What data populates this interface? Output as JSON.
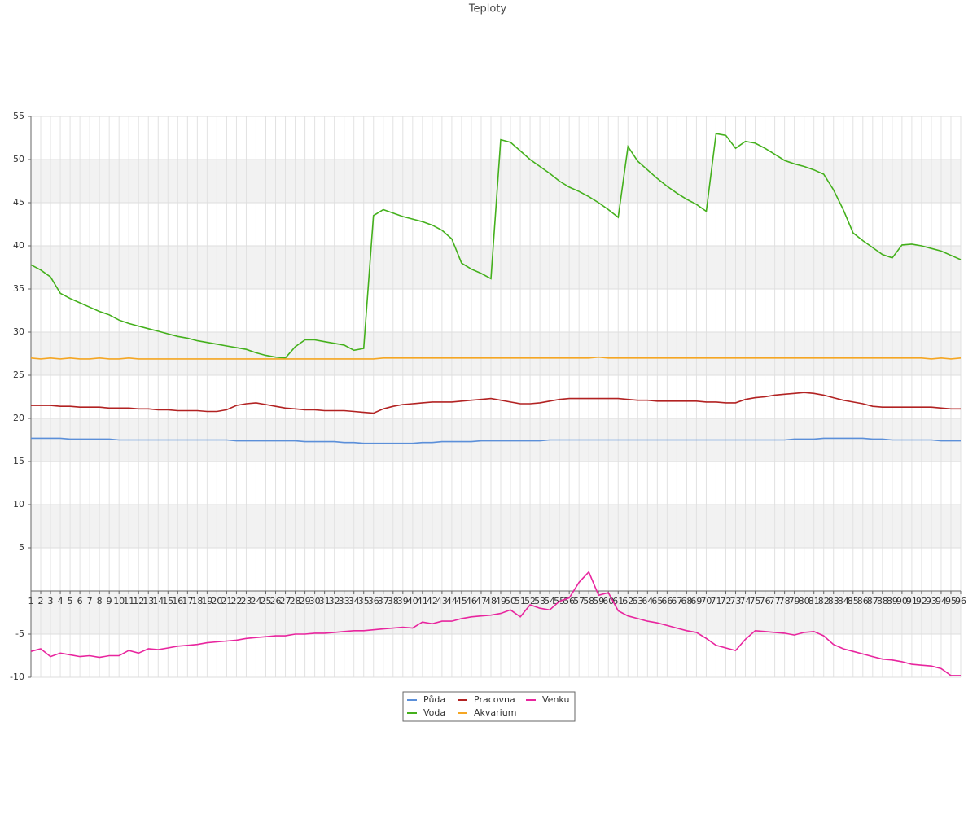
{
  "chart_data": {
    "type": "line",
    "title": "Teploty",
    "categories": [
      1,
      2,
      3,
      4,
      5,
      6,
      7,
      8,
      9,
      10,
      11,
      12,
      13,
      14,
      15,
      16,
      17,
      18,
      19,
      20,
      21,
      22,
      23,
      24,
      25,
      26,
      27,
      28,
      29,
      30,
      31,
      32,
      33,
      34,
      35,
      36,
      37,
      38,
      39,
      40,
      41,
      42,
      43,
      44,
      45,
      46,
      47,
      48,
      49,
      50,
      51,
      52,
      53,
      54,
      55,
      56,
      57,
      58,
      59,
      60,
      61,
      62,
      63,
      64,
      65,
      66,
      67,
      68,
      69,
      70,
      71,
      72,
      73,
      74,
      75,
      76,
      77,
      78,
      79,
      80,
      81,
      82,
      83,
      84,
      85,
      86,
      87,
      88,
      89,
      90,
      91,
      92,
      93,
      94,
      95,
      96
    ],
    "series": [
      {
        "name": "Půda",
        "color": "#5b8fd9",
        "values": [
          17.7,
          17.7,
          17.7,
          17.7,
          17.6,
          17.6,
          17.6,
          17.6,
          17.6,
          17.5,
          17.5,
          17.5,
          17.5,
          17.5,
          17.5,
          17.5,
          17.5,
          17.5,
          17.5,
          17.5,
          17.5,
          17.4,
          17.4,
          17.4,
          17.4,
          17.4,
          17.4,
          17.4,
          17.3,
          17.3,
          17.3,
          17.3,
          17.2,
          17.2,
          17.1,
          17.1,
          17.1,
          17.1,
          17.1,
          17.1,
          17.2,
          17.2,
          17.3,
          17.3,
          17.3,
          17.3,
          17.4,
          17.4,
          17.4,
          17.4,
          17.4,
          17.4,
          17.4,
          17.5,
          17.5,
          17.5,
          17.5,
          17.5,
          17.5,
          17.5,
          17.5,
          17.5,
          17.5,
          17.5,
          17.5,
          17.5,
          17.5,
          17.5,
          17.5,
          17.5,
          17.5,
          17.5,
          17.5,
          17.5,
          17.5,
          17.5,
          17.5,
          17.5,
          17.6,
          17.6,
          17.6,
          17.7,
          17.7,
          17.7,
          17.7,
          17.7,
          17.6,
          17.6,
          17.5,
          17.5,
          17.5,
          17.5,
          17.5,
          17.4,
          17.4,
          17.4
        ]
      },
      {
        "name": "Voda",
        "color": "#44b01c",
        "values": [
          37.8,
          37.2,
          36.4,
          34.5,
          33.9,
          33.4,
          32.9,
          32.4,
          32.0,
          31.4,
          31.0,
          30.7,
          30.4,
          30.1,
          29.8,
          29.5,
          29.3,
          29.0,
          28.8,
          28.6,
          28.4,
          28.2,
          28.0,
          27.6,
          27.3,
          27.1,
          27.0,
          28.3,
          29.1,
          29.1,
          28.9,
          28.7,
          28.5,
          27.9,
          28.1,
          43.5,
          44.2,
          43.8,
          43.4,
          43.1,
          42.8,
          42.4,
          41.8,
          40.8,
          38.0,
          37.3,
          36.8,
          36.2,
          52.3,
          52.0,
          51.0,
          50.0,
          49.2,
          48.4,
          47.5,
          46.8,
          46.3,
          45.7,
          45.0,
          44.2,
          43.3,
          51.5,
          49.8,
          48.8,
          47.8,
          46.9,
          46.1,
          45.4,
          44.8,
          44.0,
          53.0,
          52.8,
          51.3,
          52.1,
          51.9,
          51.3,
          50.6,
          49.9,
          49.5,
          49.2,
          48.8,
          48.3,
          46.5,
          44.2,
          41.5,
          40.6,
          39.8,
          39.0,
          38.6,
          40.1,
          40.2,
          40.0,
          39.7,
          39.4,
          38.9,
          38.4
        ]
      },
      {
        "name": "Pracovna",
        "color": "#b22222",
        "values": [
          21.5,
          21.5,
          21.5,
          21.4,
          21.4,
          21.3,
          21.3,
          21.3,
          21.2,
          21.2,
          21.2,
          21.1,
          21.1,
          21.0,
          21.0,
          20.9,
          20.9,
          20.9,
          20.8,
          20.8,
          21.0,
          21.5,
          21.7,
          21.8,
          21.6,
          21.4,
          21.2,
          21.1,
          21.0,
          21.0,
          20.9,
          20.9,
          20.9,
          20.8,
          20.7,
          20.6,
          21.1,
          21.4,
          21.6,
          21.7,
          21.8,
          21.9,
          21.9,
          21.9,
          22.0,
          22.1,
          22.2,
          22.3,
          22.1,
          21.9,
          21.7,
          21.7,
          21.8,
          22.0,
          22.2,
          22.3,
          22.3,
          22.3,
          22.3,
          22.3,
          22.3,
          22.2,
          22.1,
          22.1,
          22.0,
          22.0,
          22.0,
          22.0,
          22.0,
          21.9,
          21.9,
          21.8,
          21.8,
          22.2,
          22.4,
          22.5,
          22.7,
          22.8,
          22.9,
          23.0,
          22.9,
          22.7,
          22.4,
          22.1,
          21.9,
          21.7,
          21.4,
          21.3,
          21.3,
          21.3,
          21.3,
          21.3,
          21.3,
          21.2,
          21.1,
          21.1
        ]
      },
      {
        "name": "Akvarium",
        "color": "#f5a623",
        "values": [
          27.0,
          26.9,
          27.0,
          26.9,
          27.0,
          26.9,
          26.9,
          27.0,
          26.9,
          26.9,
          27.0,
          26.9,
          26.9,
          26.9,
          26.9,
          26.9,
          26.9,
          26.9,
          26.9,
          26.9,
          26.9,
          26.9,
          26.9,
          26.9,
          26.9,
          26.9,
          26.9,
          26.9,
          26.9,
          26.9,
          26.9,
          26.9,
          26.9,
          26.9,
          26.9,
          26.9,
          27.0,
          27.0,
          27.0,
          27.0,
          27.0,
          27.0,
          27.0,
          27.0,
          27.0,
          27.0,
          27.0,
          27.0,
          27.0,
          27.0,
          27.0,
          27.0,
          27.0,
          27.0,
          27.0,
          27.0,
          27.0,
          27.0,
          27.1,
          27.0,
          27.0,
          27.0,
          27.0,
          27.0,
          27.0,
          27.0,
          27.0,
          27.0,
          27.0,
          27.0,
          27.0,
          27.0,
          27.0,
          27.0,
          27.0,
          27.0,
          27.0,
          27.0,
          27.0,
          27.0,
          27.0,
          27.0,
          27.0,
          27.0,
          27.0,
          27.0,
          27.0,
          27.0,
          27.0,
          27.0,
          27.0,
          27.0,
          26.9,
          27.0,
          26.9,
          27.0
        ]
      },
      {
        "name": "Venku",
        "color": "#e8259e",
        "values": [
          -7.0,
          -6.7,
          -7.6,
          -7.2,
          -7.4,
          -7.6,
          -7.5,
          -7.7,
          -7.5,
          -7.5,
          -6.9,
          -7.2,
          -6.7,
          -6.8,
          -6.6,
          -6.4,
          -6.3,
          -6.2,
          -6.0,
          -5.9,
          -5.8,
          -5.7,
          -5.5,
          -5.4,
          -5.3,
          -5.2,
          -5.2,
          -5.0,
          -5.0,
          -4.9,
          -4.9,
          -4.8,
          -4.7,
          -4.6,
          -4.6,
          -4.5,
          -4.4,
          -4.3,
          -4.2,
          -4.3,
          -3.6,
          -3.8,
          -3.5,
          -3.5,
          -3.2,
          -3.0,
          -2.9,
          -2.8,
          -2.6,
          -2.2,
          -3.0,
          -1.6,
          -2.0,
          -2.2,
          -1.2,
          -0.8,
          1.0,
          2.2,
          -0.5,
          -0.2,
          -2.3,
          -2.9,
          -3.2,
          -3.5,
          -3.7,
          -4.0,
          -4.3,
          -4.6,
          -4.8,
          -5.5,
          -6.3,
          -6.6,
          -6.9,
          -5.6,
          -4.6,
          -4.7,
          -4.8,
          -4.9,
          -5.1,
          -4.8,
          -4.7,
          -5.2,
          -6.2,
          -6.7,
          -7.0,
          -7.3,
          -7.6,
          -7.9,
          -8.0,
          -8.2,
          -8.5,
          -8.6,
          -8.7,
          -9.0,
          -9.8,
          -9.8
        ]
      }
    ],
    "ylim": [
      -10,
      55
    ],
    "yticks": [
      -10,
      -5,
      5,
      10,
      15,
      20,
      25,
      30,
      35,
      40,
      45,
      50,
      55
    ],
    "grid": true,
    "legend": "bottom"
  }
}
